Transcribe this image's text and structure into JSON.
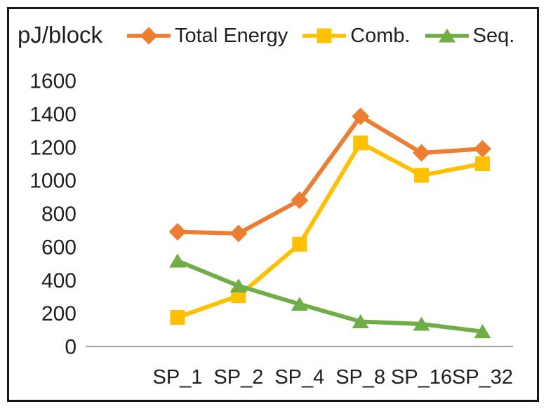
{
  "chart_data": {
    "type": "line",
    "title": "pJ/block",
    "ylabel": "pJ/block",
    "xlabel": "",
    "categories": [
      "SP_1",
      "SP_2",
      "SP_4",
      "SP_8",
      "SP_16",
      "SP_32"
    ],
    "series": [
      {
        "name": "Total Energy",
        "color": "#ED7D31",
        "marker": "diamond",
        "values": [
          690,
          680,
          880,
          1385,
          1165,
          1190
        ]
      },
      {
        "name": "Comb.",
        "color": "#FFC000",
        "marker": "square",
        "values": [
          175,
          305,
          615,
          1225,
          1030,
          1100
        ]
      },
      {
        "name": "Seq.",
        "color": "#70AD47",
        "marker": "triangle",
        "values": [
          515,
          365,
          255,
          150,
          135,
          90
        ]
      }
    ],
    "ylim": [
      0,
      1600
    ],
    "yticks": [
      0,
      200,
      400,
      600,
      800,
      1000,
      1200,
      1400,
      1600
    ],
    "grid": false,
    "legend_position": "top",
    "axis_color": "#A6A6A6",
    "text_color": "#202020"
  }
}
